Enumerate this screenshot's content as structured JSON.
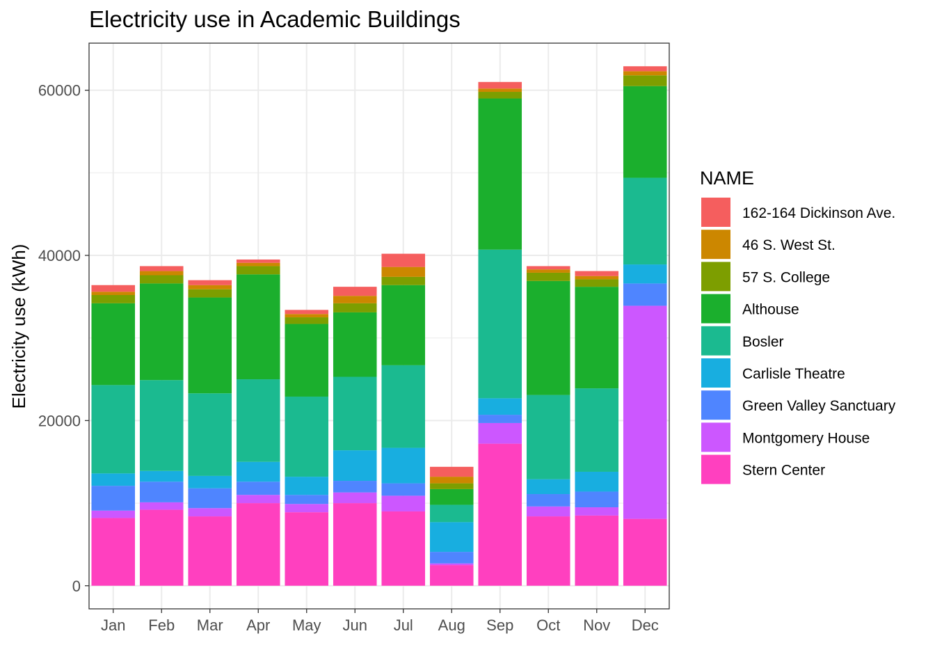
{
  "chart_data": {
    "type": "bar",
    "stacked": true,
    "title": "Electricity use in Academic Buildings",
    "xlabel": "",
    "ylabel": "Electricity use (kWh)",
    "ylim": [
      -2800,
      65700
    ],
    "yticks": [
      0,
      20000,
      40000,
      60000
    ],
    "ytick_labels": [
      "0",
      "20000",
      "40000",
      "60000"
    ],
    "grid": true,
    "legend_title": "NAME",
    "legend_position": "right",
    "categories": [
      "Jan",
      "Feb",
      "Mar",
      "Apr",
      "May",
      "Jun",
      "Jul",
      "Aug",
      "Sep",
      "Oct",
      "Nov",
      "Dec"
    ],
    "series": [
      {
        "name": "Stern Center",
        "color": "#FF40BF",
        "values": [
          8200,
          9200,
          8400,
          10000,
          8900,
          10000,
          9000,
          2500,
          17200,
          8400,
          8500,
          8100
        ]
      },
      {
        "name": "Montgomery House",
        "color": "#CC57FF",
        "values": [
          900,
          900,
          1000,
          1000,
          1000,
          1300,
          1900,
          200,
          2500,
          1200,
          1000,
          25800
        ]
      },
      {
        "name": "Green Valley Sanctuary",
        "color": "#4F85FF",
        "values": [
          3000,
          2500,
          2400,
          1600,
          1100,
          1400,
          1500,
          1400,
          1000,
          1500,
          1900,
          2700
        ]
      },
      {
        "name": "Carlisle Theatre",
        "color": "#18AEE0",
        "values": [
          1500,
          1300,
          1500,
          2400,
          2200,
          3700,
          4300,
          3600,
          2000,
          1800,
          2400,
          2300
        ]
      },
      {
        "name": "Bosler",
        "color": "#1BBA90",
        "values": [
          10700,
          11000,
          10000,
          10000,
          9700,
          8900,
          10000,
          2100,
          18000,
          10200,
          10100,
          10500
        ]
      },
      {
        "name": "Althouse",
        "color": "#1BAF2D",
        "values": [
          9900,
          11700,
          11600,
          12700,
          8800,
          7800,
          9700,
          1900,
          18300,
          13800,
          12300,
          11100
        ]
      },
      {
        "name": "57 S. College",
        "color": "#7D9E00",
        "values": [
          1000,
          1000,
          1000,
          1000,
          800,
          1100,
          1000,
          700,
          800,
          1000,
          900,
          1300
        ]
      },
      {
        "name": "46 S. West St.",
        "color": "#CC8700",
        "values": [
          400,
          500,
          500,
          400,
          400,
          900,
          1200,
          800,
          400,
          400,
          400,
          500
        ]
      },
      {
        "name": "162-164 Dickinson Ave.",
        "color": "#F55E5E",
        "values": [
          800,
          600,
          600,
          400,
          500,
          1100,
          1600,
          1200,
          800,
          400,
          600,
          600
        ]
      }
    ]
  }
}
